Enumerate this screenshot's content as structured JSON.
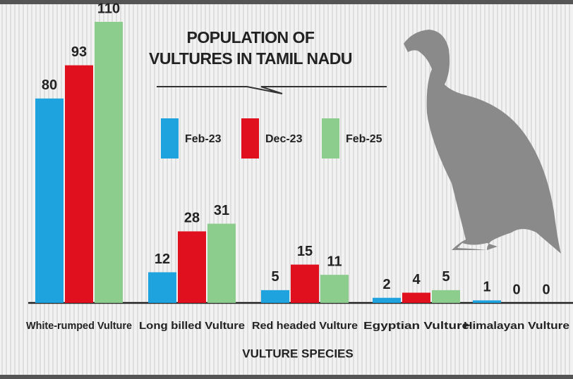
{
  "chart_data": {
    "type": "bar",
    "title": "POPULATION OF VULTURES IN TAMIL NADU",
    "x_label": "VULTURE SPECIES",
    "categories": [
      "White-rumped Vulture",
      "Long billed Vulture",
      "Red headed Vulture",
      "Egyptian Vulture",
      "Himalayan Vulture"
    ],
    "series": [
      {
        "name": "Feb-23",
        "color": "#1ea3df",
        "values": [
          80,
          12,
          5,
          2,
          1
        ]
      },
      {
        "name": "Dec-23",
        "color": "#e0101f",
        "values": [
          93,
          28,
          15,
          4,
          0
        ]
      },
      {
        "name": "Feb-25",
        "color": "#8ccc8c",
        "values": [
          110,
          31,
          11,
          5,
          0
        ]
      }
    ]
  }
}
